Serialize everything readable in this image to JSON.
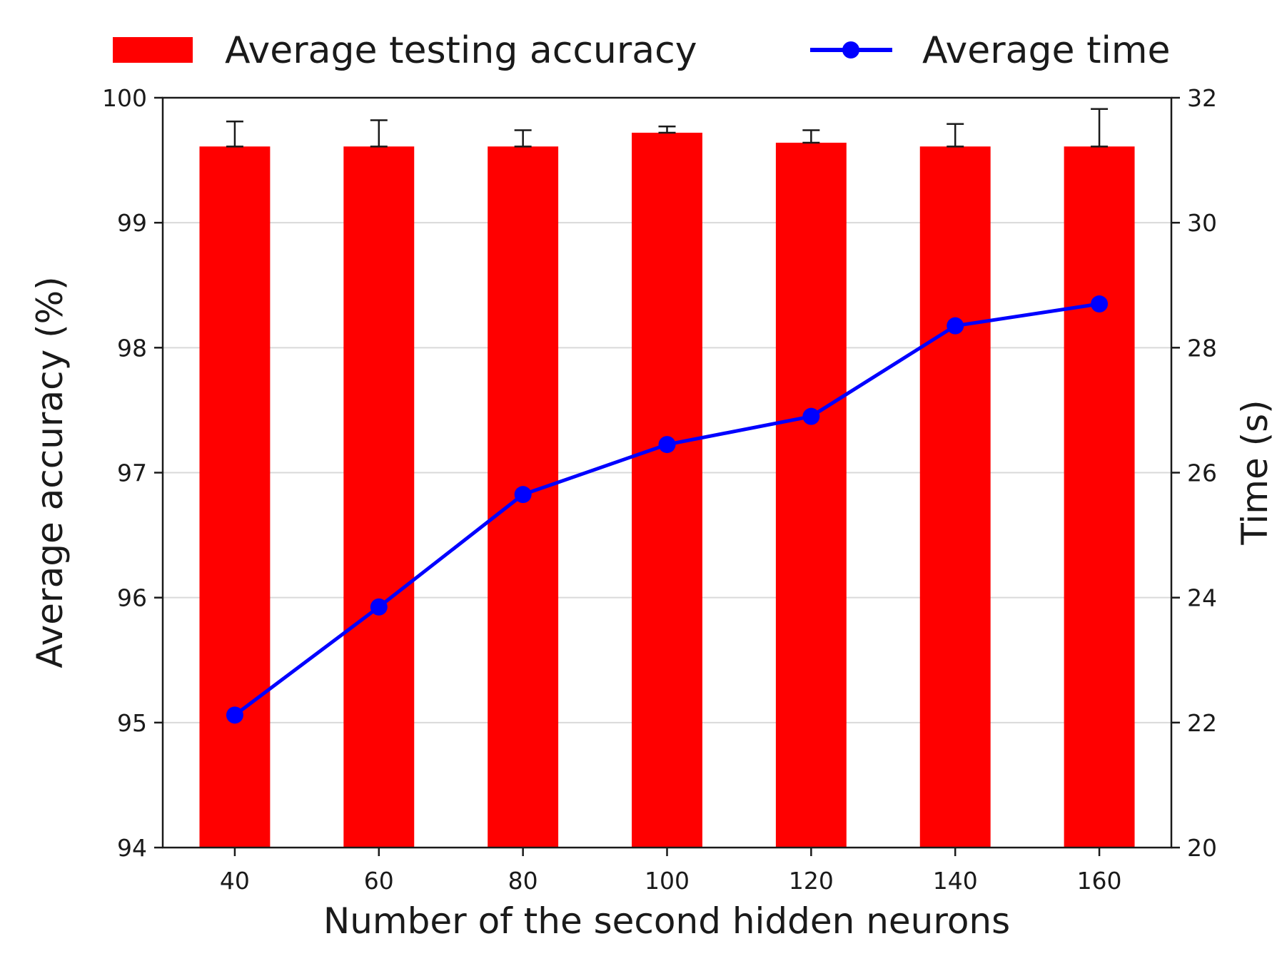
{
  "chart_data": {
    "type": "bar",
    "categories": [
      "40",
      "60",
      "80",
      "100",
      "120",
      "140",
      "160"
    ],
    "xlabel": "Number of the second hidden neurons",
    "ylabel": "Average accuracy (%)",
    "ylim": [
      94,
      100
    ],
    "yticks": [
      "94",
      "95",
      "96",
      "97",
      "98",
      "99",
      "100"
    ],
    "y2label": "Time (s)",
    "y2lim": [
      20,
      32
    ],
    "y2ticks": [
      "20",
      "22",
      "24",
      "26",
      "28",
      "30",
      "32"
    ],
    "grid": "horizontal",
    "legend_position": "top",
    "series": [
      {
        "name": "Average testing accuracy",
        "type": "bar",
        "axis": "left",
        "color": "#ff0000",
        "values": [
          99.61,
          99.61,
          99.61,
          99.72,
          99.64,
          99.61,
          99.61
        ],
        "error_upper": [
          99.81,
          99.82,
          99.74,
          99.77,
          99.74,
          99.79,
          99.91
        ]
      },
      {
        "name": "Average time",
        "type": "line",
        "axis": "right",
        "color": "#0000ff",
        "values": [
          22.12,
          23.85,
          25.65,
          26.45,
          26.9,
          28.35,
          28.7
        ]
      }
    ]
  }
}
